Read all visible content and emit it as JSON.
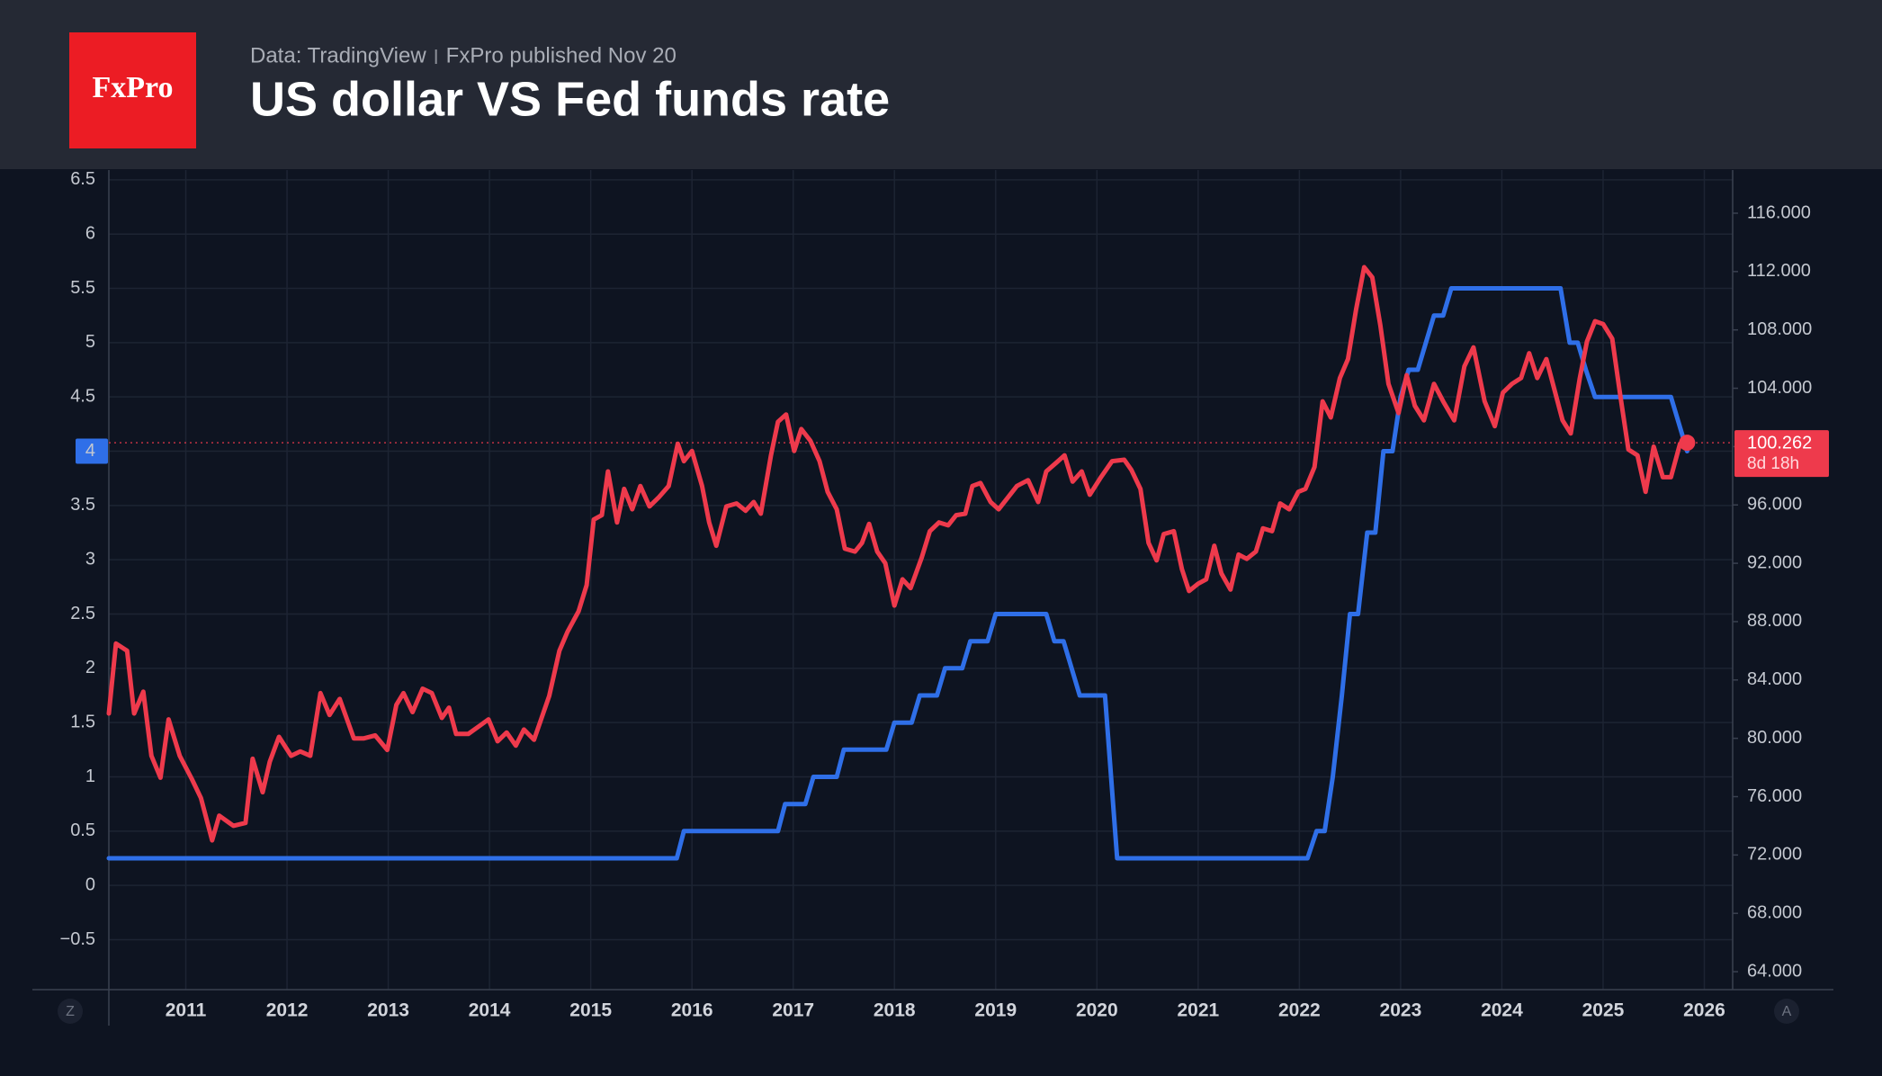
{
  "logo": "FxPro",
  "source": "Data: TradingView",
  "publisher": "FxPro published Nov 20",
  "buttons": [
    "Z",
    "A"
  ],
  "chart_data": {
    "type": "line",
    "title": "US dollar VS Fed funds rate",
    "xlim": [
      2010.24,
      2026.28
    ],
    "xticks": [
      2011,
      2012,
      2013,
      2014,
      2015,
      2016,
      2017,
      2018,
      2019,
      2020,
      2021,
      2022,
      2023,
      2024,
      2025,
      2026
    ],
    "ylim": [
      -0.96,
      6.59
    ],
    "yticks": [
      {
        "value": -0.5,
        "label": "−0.5"
      },
      0,
      0.5,
      1,
      1.5,
      2,
      2.5,
      3,
      3.5,
      4,
      4.5,
      5,
      5.5,
      6,
      6.5
    ],
    "y2lim": [
      62.77,
      118.96
    ],
    "y2ticks": [
      {
        "value": 64,
        "label": "64.000"
      },
      {
        "value": 68,
        "label": "68.000"
      },
      {
        "value": 72,
        "label": "72.000"
      },
      {
        "value": 76,
        "label": "76.000"
      },
      {
        "value": 80,
        "label": "80.000"
      },
      {
        "value": 84,
        "label": "84.000"
      },
      {
        "value": 88,
        "label": "88.000"
      },
      {
        "value": 92,
        "label": "92.000"
      },
      {
        "value": 96,
        "label": "96.000"
      },
      {
        "value": 100,
        "label": "100.000"
      },
      {
        "value": 104,
        "label": "104.000"
      },
      {
        "value": 108,
        "label": "108.000"
      },
      {
        "value": 112,
        "label": "112.000"
      },
      {
        "value": 116,
        "label": "116.000"
      }
    ],
    "grid": true,
    "y_highlight": 4,
    "price_line": 100.262,
    "price_countdown": "8d 18h",
    "series": [
      {
        "color": "#2f6fe8",
        "axis": "y",
        "x": [
          2010.24,
          2015.85,
          2015.92,
          2016.85,
          2016.92,
          2017.12,
          2017.2,
          2017.43,
          2017.5,
          2017.92,
          2018.0,
          2018.17,
          2018.25,
          2018.42,
          2018.5,
          2018.67,
          2018.75,
          2018.92,
          2019.0,
          2019.5,
          2019.58,
          2019.67,
          2019.75,
          2019.83,
          2020.08,
          2020.2,
          2022.08,
          2022.17,
          2022.25,
          2022.33,
          2022.42,
          2022.5,
          2022.58,
          2022.67,
          2022.75,
          2022.83,
          2022.92,
          2023.0,
          2023.08,
          2023.17,
          2023.25,
          2023.33,
          2023.42,
          2023.5,
          2023.58,
          2024.58,
          2024.67,
          2024.75,
          2024.83,
          2024.92,
          2025.67,
          2025.75,
          2025.83
        ],
        "values": [
          0.25,
          0.25,
          0.5,
          0.5,
          0.75,
          0.75,
          1.0,
          1.0,
          1.25,
          1.25,
          1.5,
          1.5,
          1.75,
          1.75,
          2.0,
          2.0,
          2.25,
          2.25,
          2.5,
          2.5,
          2.25,
          2.25,
          2.0,
          1.75,
          1.75,
          0.25,
          0.25,
          0.5,
          0.5,
          1.0,
          1.75,
          2.5,
          2.5,
          3.25,
          3.25,
          4.0,
          4.0,
          4.5,
          4.75,
          4.75,
          5.0,
          5.25,
          5.25,
          5.5,
          5.5,
          5.5,
          5.0,
          5.0,
          4.75,
          4.5,
          4.5,
          4.25,
          4.0
        ]
      },
      {
        "color": "#ee3a4c",
        "axis": "y2",
        "x": [
          2010.24,
          2010.31,
          2010.42,
          2010.49,
          2010.58,
          2010.66,
          2010.75,
          2010.83,
          2010.94,
          2011.06,
          2011.15,
          2011.26,
          2011.33,
          2011.47,
          2011.59,
          2011.66,
          2011.76,
          2011.83,
          2011.92,
          2012.04,
          2012.13,
          2012.23,
          2012.33,
          2012.42,
          2012.52,
          2012.66,
          2012.76,
          2012.87,
          2012.99,
          2013.08,
          2013.15,
          2013.24,
          2013.34,
          2013.43,
          2013.53,
          2013.6,
          2013.67,
          2013.79,
          2013.91,
          2013.99,
          2014.08,
          2014.17,
          2014.26,
          2014.34,
          2014.44,
          2014.59,
          2014.69,
          2014.77,
          2014.88,
          2014.96,
          2015.03,
          2015.11,
          2015.17,
          2015.26,
          2015.33,
          2015.41,
          2015.49,
          2015.58,
          2015.67,
          2015.77,
          2015.86,
          2015.92,
          2016.0,
          2016.1,
          2016.17,
          2016.24,
          2016.34,
          2016.44,
          2016.53,
          2016.61,
          2016.68,
          2016.78,
          2016.85,
          2016.93,
          2017.01,
          2017.08,
          2017.17,
          2017.26,
          2017.34,
          2017.43,
          2017.51,
          2017.61,
          2017.68,
          2017.75,
          2017.83,
          2017.91,
          2018.0,
          2018.08,
          2018.16,
          2018.27,
          2018.35,
          2018.44,
          2018.53,
          2018.61,
          2018.7,
          2018.77,
          2018.85,
          2018.95,
          2019.03,
          2019.12,
          2019.21,
          2019.32,
          2019.42,
          2019.5,
          2019.6,
          2019.68,
          2019.76,
          2019.85,
          2019.93,
          2020.04,
          2020.15,
          2020.27,
          2020.34,
          2020.43,
          2020.51,
          2020.59,
          2020.66,
          2020.76,
          2020.84,
          2020.91,
          2021.0,
          2021.08,
          2021.16,
          2021.23,
          2021.32,
          2021.4,
          2021.48,
          2021.57,
          2021.64,
          2021.73,
          2021.81,
          2021.9,
          2021.99,
          2022.06,
          2022.15,
          2022.23,
          2022.31,
          2022.4,
          2022.48,
          2022.56,
          2022.64,
          2022.72,
          2022.8,
          2022.88,
          2022.98,
          2023.06,
          2023.14,
          2023.23,
          2023.33,
          2023.42,
          2023.53,
          2023.63,
          2023.72,
          2023.83,
          2023.93,
          2024.01,
          2024.1,
          2024.19,
          2024.27,
          2024.35,
          2024.44,
          2024.52,
          2024.6,
          2024.68,
          2024.77,
          2024.84,
          2024.92,
          2025.0,
          2025.09,
          2025.17,
          2025.25,
          2025.34,
          2025.42,
          2025.5,
          2025.59,
          2025.67,
          2025.76,
          2025.83
        ],
        "values": [
          81.7,
          86.5,
          86.0,
          81.7,
          83.2,
          78.8,
          77.3,
          81.3,
          78.8,
          77.2,
          75.9,
          73.0,
          74.7,
          74.0,
          74.2,
          78.6,
          76.3,
          78.4,
          80.1,
          78.8,
          79.1,
          78.8,
          83.1,
          81.6,
          82.7,
          80.0,
          80.0,
          80.2,
          79.2,
          82.3,
          83.1,
          81.8,
          83.4,
          83.1,
          81.4,
          82.1,
          80.3,
          80.3,
          80.9,
          81.3,
          79.8,
          80.4,
          79.5,
          80.6,
          79.9,
          82.9,
          86.0,
          87.3,
          88.7,
          90.5,
          95.0,
          95.3,
          98.3,
          94.8,
          97.1,
          95.7,
          97.3,
          95.9,
          96.5,
          97.3,
          100.2,
          99.0,
          99.7,
          97.3,
          94.8,
          93.2,
          95.9,
          96.1,
          95.6,
          96.2,
          95.4,
          99.4,
          101.7,
          102.2,
          99.7,
          101.2,
          100.4,
          99.0,
          96.9,
          95.7,
          93.0,
          92.8,
          93.4,
          94.7,
          92.8,
          92.0,
          89.1,
          90.9,
          90.3,
          92.4,
          94.2,
          94.8,
          94.6,
          95.3,
          95.4,
          97.3,
          97.5,
          96.2,
          95.7,
          96.5,
          97.3,
          97.7,
          96.2,
          98.3,
          98.9,
          99.4,
          97.6,
          98.3,
          96.7,
          97.9,
          99.0,
          99.1,
          98.4,
          97.1,
          93.4,
          92.2,
          94.0,
          94.2,
          91.6,
          90.1,
          90.6,
          90.9,
          93.2,
          91.3,
          90.2,
          92.6,
          92.3,
          92.8,
          94.4,
          94.2,
          96.1,
          95.7,
          96.9,
          97.1,
          98.6,
          103.1,
          102.0,
          104.7,
          106.0,
          109.4,
          112.3,
          111.6,
          108.3,
          104.3,
          102.3,
          104.9,
          102.8,
          101.8,
          104.3,
          103.1,
          101.8,
          105.5,
          106.8,
          103.1,
          101.4,
          103.7,
          104.3,
          104.7,
          106.4,
          104.7,
          106.0,
          103.9,
          101.8,
          100.9,
          104.7,
          107.2,
          108.6,
          108.4,
          107.4,
          103.5,
          99.8,
          99.4,
          96.9,
          100.0,
          97.9,
          97.9,
          100.2,
          100.262
        ]
      }
    ]
  }
}
